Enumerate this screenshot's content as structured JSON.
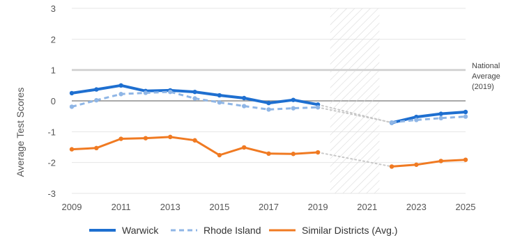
{
  "chart_data": {
    "type": "line",
    "title": "",
    "xlabel": "",
    "ylabel": "Average Test Scores",
    "xlim": [
      2009,
      2025
    ],
    "ylim": [
      -3,
      3
    ],
    "x_ticks": [
      "2009",
      "2011",
      "2013",
      "2015",
      "2017",
      "2019",
      "2021",
      "2023",
      "2025"
    ],
    "y_ticks": [
      "3",
      "2",
      "1",
      "0",
      "-1",
      "-2",
      "-3"
    ],
    "grid": true,
    "legend_position": "bottom",
    "shaded_period": {
      "from": 2019.5,
      "to": 2021.5
    },
    "reference_line": {
      "y": 1,
      "label_lines": [
        "National",
        "Average",
        "(2019)"
      ]
    },
    "series": [
      {
        "name": "Warwick",
        "color": "#1e6fd0",
        "style": "solid",
        "points": [
          [
            2009,
            0.25
          ],
          [
            2010,
            0.37
          ],
          [
            2011,
            0.5
          ],
          [
            2012,
            0.32
          ],
          [
            2013,
            0.34
          ],
          [
            2014,
            0.29
          ],
          [
            2015,
            0.18
          ],
          [
            2016,
            0.09
          ],
          [
            2017,
            -0.07
          ],
          [
            2018,
            0.03
          ],
          [
            2019,
            -0.12
          ],
          [
            2022,
            -0.71
          ],
          [
            2023,
            -0.52
          ],
          [
            2024,
            -0.42
          ],
          [
            2025,
            -0.36
          ]
        ]
      },
      {
        "name": "Rhode Island",
        "color": "#8fb6e6",
        "style": "dashed",
        "points": [
          [
            2009,
            -0.19
          ],
          [
            2010,
            0.02
          ],
          [
            2011,
            0.22
          ],
          [
            2012,
            0.26
          ],
          [
            2013,
            0.29
          ],
          [
            2014,
            0.08
          ],
          [
            2015,
            -0.05
          ],
          [
            2016,
            -0.17
          ],
          [
            2017,
            -0.28
          ],
          [
            2018,
            -0.24
          ],
          [
            2019,
            -0.21
          ],
          [
            2022,
            -0.7
          ],
          [
            2023,
            -0.62
          ],
          [
            2024,
            -0.56
          ],
          [
            2025,
            -0.51
          ]
        ]
      },
      {
        "name": "Similar Districts (Avg.)",
        "color": "#f07a22",
        "style": "solid",
        "points": [
          [
            2009,
            -1.57
          ],
          [
            2010,
            -1.53
          ],
          [
            2011,
            -1.23
          ],
          [
            2012,
            -1.21
          ],
          [
            2013,
            -1.17
          ],
          [
            2014,
            -1.28
          ],
          [
            2015,
            -1.76
          ],
          [
            2016,
            -1.51
          ],
          [
            2017,
            -1.71
          ],
          [
            2018,
            -1.72
          ],
          [
            2019,
            -1.67
          ],
          [
            2022,
            -2.13
          ],
          [
            2023,
            -2.07
          ],
          [
            2024,
            -1.95
          ],
          [
            2025,
            -1.91
          ]
        ]
      }
    ]
  }
}
